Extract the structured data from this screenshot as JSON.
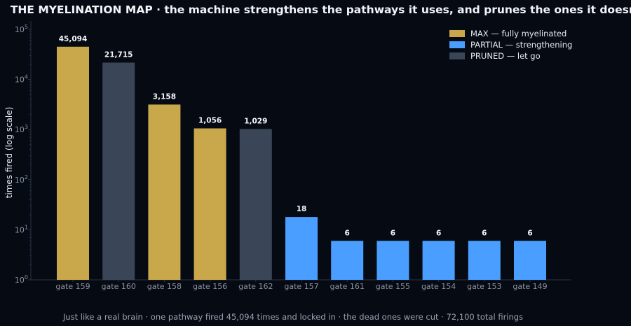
{
  "title": "THE MYELINATION MAP  ·  the machine strengthens the pathways it uses, and prunes the ones it doesn’t",
  "footer": "Just like a real brain  ·  one pathway fired 45,094 times and locked in  ·  the dead ones were cut  ·  72,100 total firings",
  "colors": {
    "background": "#060a12",
    "max": "#c9a84c",
    "partial": "#4a9eff",
    "pruned": "#3a4558",
    "axis": "#2a3446"
  },
  "chart_data": {
    "type": "bar",
    "ylabel": "times fired (log scale)",
    "yscale": "log",
    "ylim": [
      1,
      100000
    ],
    "yticks": [
      {
        "value": 1,
        "base": "10",
        "exp": "0"
      },
      {
        "value": 10,
        "base": "10",
        "exp": "1"
      },
      {
        "value": 100,
        "base": "10",
        "exp": "2"
      },
      {
        "value": 1000,
        "base": "10",
        "exp": "3"
      },
      {
        "value": 10000,
        "base": "10",
        "exp": "4"
      },
      {
        "value": 100000,
        "base": "10",
        "exp": "5"
      }
    ],
    "grid": false,
    "legend_position": "top-right",
    "legend": [
      {
        "key": "max",
        "label": "MAX — fully myelinated"
      },
      {
        "key": "partial",
        "label": "PARTIAL — strengthening"
      },
      {
        "key": "pruned",
        "label": "PRUNED — let go"
      }
    ],
    "bars": [
      {
        "category": "gate 159",
        "value": 45094,
        "label": "45,094",
        "status": "max"
      },
      {
        "category": "gate 160",
        "value": 21715,
        "label": "21,715",
        "status": "pruned"
      },
      {
        "category": "gate 158",
        "value": 3158,
        "label": "3,158",
        "status": "max"
      },
      {
        "category": "gate 156",
        "value": 1056,
        "label": "1,056",
        "status": "max"
      },
      {
        "category": "gate 162",
        "value": 1029,
        "label": "1,029",
        "status": "pruned"
      },
      {
        "category": "gate 157",
        "value": 18,
        "label": "18",
        "status": "partial"
      },
      {
        "category": "gate 161",
        "value": 6,
        "label": "6",
        "status": "partial"
      },
      {
        "category": "gate 155",
        "value": 6,
        "label": "6",
        "status": "partial"
      },
      {
        "category": "gate 154",
        "value": 6,
        "label": "6",
        "status": "partial"
      },
      {
        "category": "gate 153",
        "value": 6,
        "label": "6",
        "status": "partial"
      },
      {
        "category": "gate 149",
        "value": 6,
        "label": "6",
        "status": "partial"
      }
    ]
  }
}
